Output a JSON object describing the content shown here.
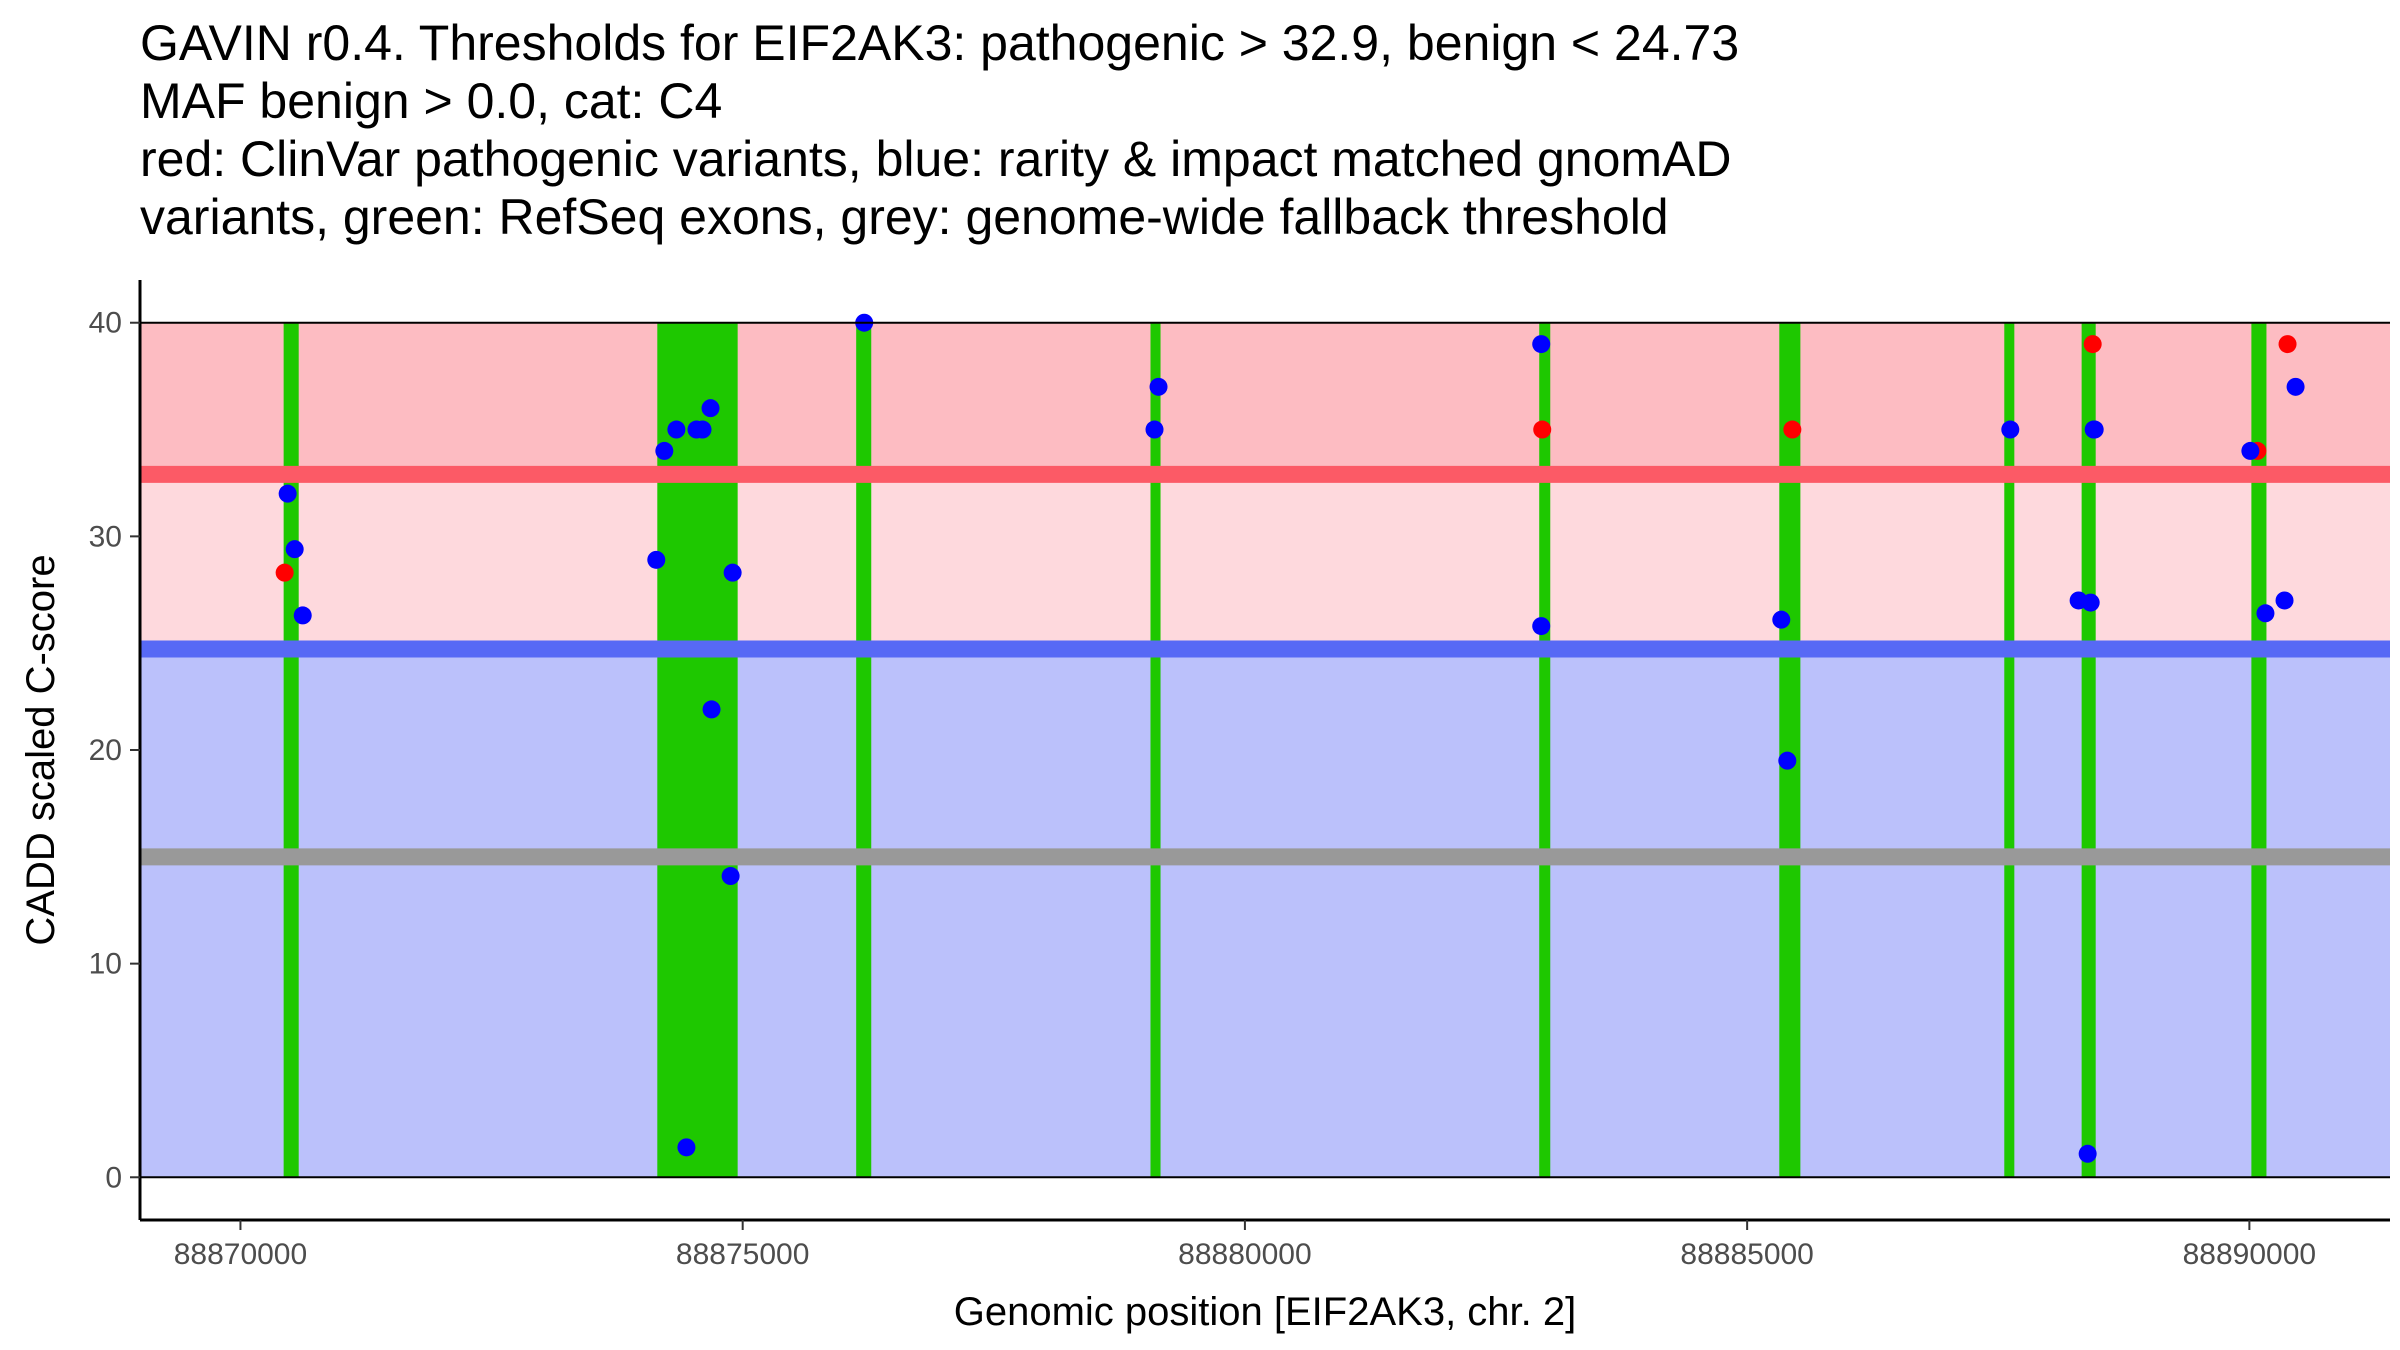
{
  "chart_data": {
    "type": "scatter",
    "title_lines": [
      "GAVIN r0.4. Thresholds for EIF2AK3: pathogenic > 32.9, benign < 24.73",
      "MAF benign > 0.0, cat: C4",
      "red: ClinVar pathogenic variants, blue: rarity & impact matched gnomAD",
      "variants, green: RefSeq exons, grey: genome-wide fallback threshold"
    ],
    "xlabel": "Genomic position [EIF2AK3, chr. 2]",
    "ylabel": "CADD scaled C-score",
    "xlim": [
      88869000,
      88891400
    ],
    "ylim": [
      -2,
      42
    ],
    "x_ticks": [
      88870000,
      88875000,
      88880000,
      88885000,
      88890000
    ],
    "y_ticks": [
      0,
      10,
      20,
      30,
      40
    ],
    "thresholds": {
      "pathogenic": 32.9,
      "benign": 24.73,
      "fallback": 15
    },
    "bands": [
      {
        "name": "pathogenic-region",
        "from": 32.9,
        "to": 40,
        "color": "#fdbcc2"
      },
      {
        "name": "vus-region",
        "from": 24.73,
        "to": 32.9,
        "color": "#fed9dd"
      },
      {
        "name": "benign-region",
        "from": 0,
        "to": 24.73,
        "color": "#bbc1fb"
      }
    ],
    "threshold_colors": {
      "pathogenic": "#fc5a66",
      "benign": "#5769f5",
      "fallback": "#999999"
    },
    "exon_color": "#1ec800",
    "exons": [
      [
        88870430,
        88870580
      ],
      [
        88874150,
        88874950
      ],
      [
        88876130,
        88876280
      ],
      [
        88879060,
        88879160
      ],
      [
        88882930,
        88883040
      ],
      [
        88885320,
        88885530
      ],
      [
        88887560,
        88887660
      ],
      [
        88888330,
        88888470
      ],
      [
        88890020,
        88890170
      ]
    ],
    "series": [
      {
        "name": "ClinVar pathogenic",
        "color": "#ff0000",
        "points": [
          [
            88870440,
            28.3
          ],
          [
            88882960,
            35
          ],
          [
            88885450,
            35
          ],
          [
            88888440,
            39
          ],
          [
            88890080,
            34
          ],
          [
            88890380,
            39
          ]
        ]
      },
      {
        "name": "gnomAD matched",
        "color": "#0000ff",
        "points": [
          [
            88870470,
            32
          ],
          [
            88870540,
            29.4
          ],
          [
            88870620,
            26.3
          ],
          [
            88874140,
            28.9
          ],
          [
            88874220,
            34
          ],
          [
            88874340,
            35
          ],
          [
            88874440,
            1.4
          ],
          [
            88874540,
            35
          ],
          [
            88874600,
            35
          ],
          [
            88874680,
            36
          ],
          [
            88874690,
            21.9
          ],
          [
            88874880,
            14.1
          ],
          [
            88874900,
            28.3
          ],
          [
            88876210,
            40
          ],
          [
            88879100,
            35
          ],
          [
            88879140,
            37
          ],
          [
            88882950,
            39
          ],
          [
            88882950,
            25.8
          ],
          [
            88885340,
            26.1
          ],
          [
            88885400,
            19.5
          ],
          [
            88887620,
            35
          ],
          [
            88888300,
            27
          ],
          [
            88888390,
            1.1
          ],
          [
            88888420,
            26.9
          ],
          [
            88888450,
            35
          ],
          [
            88888460,
            35
          ],
          [
            88890010,
            34
          ],
          [
            88890160,
            26.4
          ],
          [
            88890350,
            27
          ],
          [
            88890460,
            37
          ]
        ]
      }
    ]
  }
}
